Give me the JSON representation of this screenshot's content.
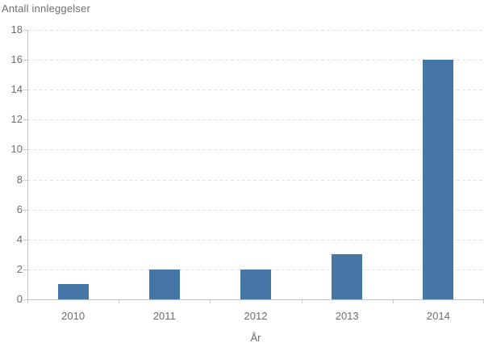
{
  "chart_data": {
    "type": "bar",
    "title": "Antall innleggelser",
    "categories": [
      "2010",
      "2011",
      "2012",
      "2013",
      "2014"
    ],
    "values": [
      1,
      2,
      2,
      3,
      16
    ],
    "xlabel": "År",
    "ylabel": "",
    "ylim": [
      0,
      18
    ],
    "ytick_step": 2,
    "ytick_labels": [
      "0",
      "2",
      "4",
      "6",
      "8",
      "10",
      "12",
      "14",
      "16",
      "18"
    ],
    "grid": "horizontal-dashed",
    "legend": "none",
    "bar_color": "#4576a5",
    "grid_color": "#e2e2e2",
    "axis_color": "#c2c2c2",
    "tick_color": "#c9c9c9",
    "text_color": "#6e6e6e"
  }
}
